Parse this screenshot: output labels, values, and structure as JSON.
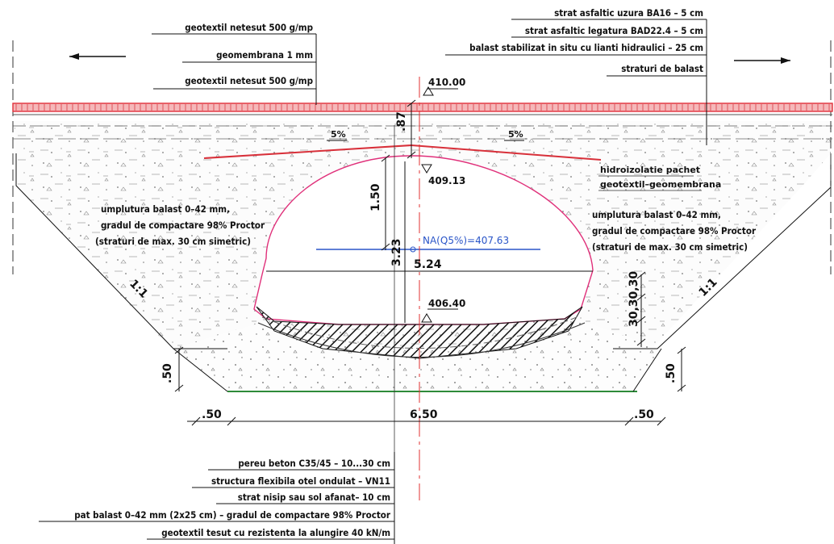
{
  "labels_top_left": [
    "geotextil netesut 500 g/mp",
    "geomembrana 1 mm",
    "geotextil netesut 500 g/mp"
  ],
  "labels_top_right": [
    "strat asfaltic uzura BA16 – 5 cm",
    "strat asfaltic legatura BAD22.4 – 5 cm",
    "balast stabilizat in situ cu lianti hidraulici – 25 cm",
    "straturi de balast"
  ],
  "labels_bottom": [
    "pereu beton C35/45 – 10...30 cm",
    "structura flexibila otel ondulat – VN11",
    "strat nisip sau sol afanat– 10 cm",
    "pat balast 0–42 mm (2x25 cm) – gradul de compactare 98% Proctor",
    "geotextil tesut cu rezistenta la alungire 40 kN/m"
  ],
  "fill_left": [
    "umplutura balast 0–42 mm,",
    "gradul de compactare 98% Proctor",
    "(straturi de max. 30 cm simetric)"
  ],
  "fill_right": [
    "umplutura balast 0–42 mm,",
    "gradul de compactare 98% Proctor",
    "(straturi de max. 30 cm simetric)"
  ],
  "waterproof": [
    "hidroizolatie pachet",
    "geotextil–geomembrana"
  ],
  "levels": {
    "top": "410.00",
    "crown": "409.13",
    "bottom": "406.40",
    "water": "NA(Q5%)=407.63"
  },
  "dims": {
    "cover": ".87",
    "rise": "1.50",
    "height": "3.23",
    "span": "5.24",
    "base_width": "6.50",
    "left_off": ".50",
    "right_off": ".50",
    "left_base": ".50",
    "right_base": ".50",
    "layers": "30,30,30"
  },
  "slopes": {
    "left": "1:1",
    "right": "1:1"
  },
  "pct": [
    "5%",
    "5%"
  ],
  "colors": {
    "asphalt": "#e0303b",
    "arch": "#e0307a",
    "water": "#2a55c8",
    "green": "#2e8b3a",
    "axis": "#e03030"
  }
}
